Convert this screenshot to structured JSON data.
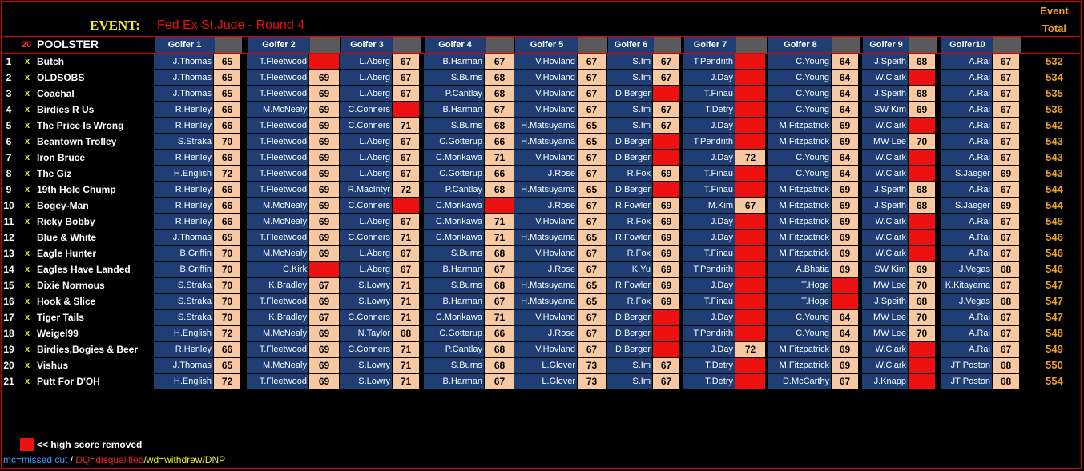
{
  "event": {
    "label": "EVENT:",
    "name": "Fed Ex St.Jude - Round 4",
    "total_header": [
      "Event",
      "Total"
    ]
  },
  "header": {
    "count": "20",
    "poolster": "POOLSTER"
  },
  "golfers": [
    "Golfer 1",
    "Golfer 2",
    "Golfer 3",
    "Golfer 4",
    "Golfer 5",
    "Golfer 6",
    "Golfer 7",
    "Golfer 8",
    "Golfer 9",
    "Golfer10"
  ],
  "rows": [
    {
      "num": "1",
      "x": "x",
      "name": "Butch",
      "picks": [
        [
          "J.Thomas",
          "65"
        ],
        [
          "T.Fleetwood",
          ""
        ],
        [
          "L.Aberg",
          "67"
        ],
        [
          "B.Harman",
          "67"
        ],
        [
          "V.Hovland",
          "67"
        ],
        [
          "S.Im",
          "67"
        ],
        [
          "T.Pendrith",
          ""
        ],
        [
          "C.Young",
          "64"
        ],
        [
          "J.Speith",
          "68"
        ],
        [
          "A.Rai",
          "67"
        ]
      ],
      "total": "532"
    },
    {
      "num": "2",
      "x": "x",
      "name": "OLDSOBS",
      "picks": [
        [
          "J.Thomas",
          "65"
        ],
        [
          "T.Fleetwood",
          "69"
        ],
        [
          "L.Aberg",
          "67"
        ],
        [
          "S.Burns",
          "68"
        ],
        [
          "V.Hovland",
          "67"
        ],
        [
          "S.Im",
          "67"
        ],
        [
          "J.Day",
          ""
        ],
        [
          "C.Young",
          "64"
        ],
        [
          "W.Clark",
          ""
        ],
        [
          "A.Rai",
          "67"
        ]
      ],
      "total": "534"
    },
    {
      "num": "3",
      "x": "x",
      "name": "Coachal",
      "picks": [
        [
          "J.Thomas",
          "65"
        ],
        [
          "T.Fleetwood",
          "69"
        ],
        [
          "L.Aberg",
          "67"
        ],
        [
          "P.Cantlay",
          "68"
        ],
        [
          "V.Hovland",
          "67"
        ],
        [
          "D.Berger",
          ""
        ],
        [
          "T.Finau",
          ""
        ],
        [
          "C.Young",
          "64"
        ],
        [
          "J.Speith",
          "68"
        ],
        [
          "A.Rai",
          "67"
        ]
      ],
      "total": "535"
    },
    {
      "num": "4",
      "x": "x",
      "name": "Birdies R Us",
      "picks": [
        [
          "R.Henley",
          "66"
        ],
        [
          "M.McNealy",
          "69"
        ],
        [
          "C.Conners",
          ""
        ],
        [
          "B.Harman",
          "67"
        ],
        [
          "V.Hovland",
          "67"
        ],
        [
          "S.Im",
          "67"
        ],
        [
          "T.Detry",
          ""
        ],
        [
          "C.Young",
          "64"
        ],
        [
          "SW Kim",
          "69"
        ],
        [
          "A.Rai",
          "67"
        ]
      ],
      "total": "536"
    },
    {
      "num": "5",
      "x": "x",
      "name": "The Price Is Wrong",
      "picks": [
        [
          "R.Henley",
          "66"
        ],
        [
          "T.Fleetwood",
          "69"
        ],
        [
          "C.Conners",
          "71"
        ],
        [
          "S.Burns",
          "68"
        ],
        [
          "H.Matsuyama",
          "65"
        ],
        [
          "S.Im",
          "67"
        ],
        [
          "J.Day",
          ""
        ],
        [
          "M.Fitzpatrick",
          "69"
        ],
        [
          "W.Clark",
          ""
        ],
        [
          "A.Rai",
          "67"
        ]
      ],
      "total": "542"
    },
    {
      "num": "6",
      "x": "x",
      "name": "Beantown Trolley",
      "picks": [
        [
          "S.Straka",
          "70"
        ],
        [
          "T.Fleetwood",
          "69"
        ],
        [
          "L.Aberg",
          "67"
        ],
        [
          "C.Gotterup",
          "66"
        ],
        [
          "H.Matsuyama",
          "65"
        ],
        [
          "D.Berger",
          ""
        ],
        [
          "T.Pendrith",
          ""
        ],
        [
          "M.Fitzpatrick",
          "69"
        ],
        [
          "MW Lee",
          "70"
        ],
        [
          "A.Rai",
          "67"
        ]
      ],
      "total": "543"
    },
    {
      "num": "7",
      "x": "x",
      "name": "Iron Bruce",
      "picks": [
        [
          "R.Henley",
          "66"
        ],
        [
          "T.Fleetwood",
          "69"
        ],
        [
          "L.Aberg",
          "67"
        ],
        [
          "C.Morikawa",
          "71"
        ],
        [
          "V.Hovland",
          "67"
        ],
        [
          "D.Berger",
          ""
        ],
        [
          "J.Day",
          "72"
        ],
        [
          "C.Young",
          "64"
        ],
        [
          "W.Clark",
          ""
        ],
        [
          "A.Rai",
          "67"
        ]
      ],
      "total": "543"
    },
    {
      "num": "8",
      "x": "x",
      "name": "The Giz",
      "picks": [
        [
          "H.English",
          "72"
        ],
        [
          "T.Fleetwood",
          "69"
        ],
        [
          "L.Aberg",
          "67"
        ],
        [
          "C.Gotterup",
          "66"
        ],
        [
          "J.Rose",
          "67"
        ],
        [
          "R.Fox",
          "69"
        ],
        [
          "T.Finau",
          ""
        ],
        [
          "C.Young",
          "64"
        ],
        [
          "W.Clark",
          ""
        ],
        [
          "S.Jaeger",
          "69"
        ]
      ],
      "total": "543"
    },
    {
      "num": "9",
      "x": "x",
      "name": "19th Hole Chump",
      "picks": [
        [
          "R.Henley",
          "66"
        ],
        [
          "T.Fleetwood",
          "69"
        ],
        [
          "R.MacIntyr",
          "72"
        ],
        [
          "P.Cantlay",
          "68"
        ],
        [
          "H.Matsuyama",
          "65"
        ],
        [
          "D.Berger",
          ""
        ],
        [
          "T.Finau",
          ""
        ],
        [
          "M.Fitzpatrick",
          "69"
        ],
        [
          "J.Speith",
          "68"
        ],
        [
          "A.Rai",
          "67"
        ]
      ],
      "total": "544"
    },
    {
      "num": "10",
      "x": "x",
      "name": "Bogey-Man",
      "picks": [
        [
          "R.Henley",
          "66"
        ],
        [
          "M.McNealy",
          "69"
        ],
        [
          "C.Conners",
          ""
        ],
        [
          "C.Morikawa",
          ""
        ],
        [
          "J.Rose",
          "67"
        ],
        [
          "R.Fowler",
          "69"
        ],
        [
          "M.Kim",
          "67"
        ],
        [
          "M.Fitzpatrick",
          "69"
        ],
        [
          "J.Speith",
          "68"
        ],
        [
          "S.Jaeger",
          "69"
        ]
      ],
      "total": "544"
    },
    {
      "num": "11",
      "x": "x",
      "name": "Ricky Bobby",
      "picks": [
        [
          "R.Henley",
          "66"
        ],
        [
          "M.McNealy",
          "69"
        ],
        [
          "L.Aberg",
          "67"
        ],
        [
          "C.Morikawa",
          "71"
        ],
        [
          "V.Hovland",
          "67"
        ],
        [
          "R.Fox",
          "69"
        ],
        [
          "J.Day",
          ""
        ],
        [
          "M.Fitzpatrick",
          "69"
        ],
        [
          "W.Clark",
          ""
        ],
        [
          "A.Rai",
          "67"
        ]
      ],
      "total": "545"
    },
    {
      "num": "12",
      "x": "",
      "name": "Blue & White",
      "picks": [
        [
          "J.Thomas",
          "65"
        ],
        [
          "T.Fleetwood",
          "69"
        ],
        [
          "C.Conners",
          "71"
        ],
        [
          "C.Morikawa",
          "71"
        ],
        [
          "H.Matsuyama",
          "65"
        ],
        [
          "R.Fowler",
          "69"
        ],
        [
          "J.Day",
          ""
        ],
        [
          "M.Fitzpatrick",
          "69"
        ],
        [
          "W.Clark",
          ""
        ],
        [
          "A.Rai",
          "67"
        ]
      ],
      "total": "546"
    },
    {
      "num": "13",
      "x": "x",
      "name": "Eagle Hunter",
      "picks": [
        [
          "B.Griffin",
          "70"
        ],
        [
          "M.McNealy",
          "69"
        ],
        [
          "L.Aberg",
          "67"
        ],
        [
          "S.Burns",
          "68"
        ],
        [
          "V.Hovland",
          "67"
        ],
        [
          "R.Fox",
          "69"
        ],
        [
          "T.Finau",
          ""
        ],
        [
          "M.Fitzpatrick",
          "69"
        ],
        [
          "W.Clark",
          ""
        ],
        [
          "A.Rai",
          "67"
        ]
      ],
      "total": "546"
    },
    {
      "num": "14",
      "x": "x",
      "name": "Eagles Have Landed",
      "picks": [
        [
          "B.Griffin",
          "70"
        ],
        [
          "C.Kirk",
          ""
        ],
        [
          "L.Aberg",
          "67"
        ],
        [
          "B.Harman",
          "67"
        ],
        [
          "J.Rose",
          "67"
        ],
        [
          "K.Yu",
          "69"
        ],
        [
          "T.Pendrith",
          ""
        ],
        [
          "A.Bhatia",
          "69"
        ],
        [
          "SW Kim",
          "69"
        ],
        [
          "J.Vegas",
          "68"
        ]
      ],
      "total": "546"
    },
    {
      "num": "15",
      "x": "x",
      "name": "Dixie Normous",
      "picks": [
        [
          "S.Straka",
          "70"
        ],
        [
          "K.Bradley",
          "67"
        ],
        [
          "S.Lowry",
          "71"
        ],
        [
          "S.Burns",
          "68"
        ],
        [
          "H.Matsuyama",
          "65"
        ],
        [
          "R.Fowler",
          "69"
        ],
        [
          "J.Day",
          ""
        ],
        [
          "T.Hoge",
          ""
        ],
        [
          "MW Lee",
          "70"
        ],
        [
          "K.Kitayama",
          "67"
        ]
      ],
      "total": "547"
    },
    {
      "num": "16",
      "x": "x",
      "name": "Hook & Slice",
      "picks": [
        [
          "S.Straka",
          "70"
        ],
        [
          "T.Fleetwood",
          "69"
        ],
        [
          "S.Lowry",
          "71"
        ],
        [
          "B.Harman",
          "67"
        ],
        [
          "H.Matsuyama",
          "65"
        ],
        [
          "R.Fox",
          "69"
        ],
        [
          "T.Finau",
          ""
        ],
        [
          "T.Hoge",
          ""
        ],
        [
          "J.Speith",
          "68"
        ],
        [
          "J.Vegas",
          "68"
        ]
      ],
      "total": "547"
    },
    {
      "num": "17",
      "x": "x",
      "name": "Tiger Tails",
      "picks": [
        [
          "S.Straka",
          "70"
        ],
        [
          "K.Bradley",
          "67"
        ],
        [
          "C.Conners",
          "71"
        ],
        [
          "C.Morikawa",
          "71"
        ],
        [
          "V.Hovland",
          "67"
        ],
        [
          "D.Berger",
          ""
        ],
        [
          "J.Day",
          ""
        ],
        [
          "C.Young",
          "64"
        ],
        [
          "MW Lee",
          "70"
        ],
        [
          "A.Rai",
          "67"
        ]
      ],
      "total": "547"
    },
    {
      "num": "18",
      "x": "x",
      "name": "Weigel99",
      "picks": [
        [
          "H.English",
          "72"
        ],
        [
          "M.McNealy",
          "69"
        ],
        [
          "N.Taylor",
          "68"
        ],
        [
          "C.Gotterup",
          "66"
        ],
        [
          "J.Rose",
          "67"
        ],
        [
          "D.Berger",
          ""
        ],
        [
          "T.Pendrith",
          ""
        ],
        [
          "C.Young",
          "64"
        ],
        [
          "MW Lee",
          "70"
        ],
        [
          "A.Rai",
          "67"
        ]
      ],
      "total": "548"
    },
    {
      "num": "19",
      "x": "x",
      "name": "Birdies,Bogies & Beer",
      "picks": [
        [
          "R.Henley",
          "66"
        ],
        [
          "T.Fleetwood",
          "69"
        ],
        [
          "C.Conners",
          "71"
        ],
        [
          "P.Cantlay",
          "68"
        ],
        [
          "V.Hovland",
          "67"
        ],
        [
          "D.Berger",
          ""
        ],
        [
          "J.Day",
          "72"
        ],
        [
          "M.Fitzpatrick",
          "69"
        ],
        [
          "W.Clark",
          ""
        ],
        [
          "A.Rai",
          "67"
        ]
      ],
      "total": "549"
    },
    {
      "num": "20",
      "x": "x",
      "name": "Vishus",
      "picks": [
        [
          "J.Thomas",
          "65"
        ],
        [
          "M.McNealy",
          "69"
        ],
        [
          "S.Lowry",
          "71"
        ],
        [
          "S.Burns",
          "68"
        ],
        [
          "L.Glover",
          "73"
        ],
        [
          "S.Im",
          "67"
        ],
        [
          "T.Detry",
          ""
        ],
        [
          "M.Fitzpatrick",
          "69"
        ],
        [
          "W.Clark",
          ""
        ],
        [
          "JT Poston",
          "68"
        ]
      ],
      "total": "550"
    },
    {
      "num": "21",
      "x": "x",
      "name": "Putt For D'OH",
      "picks": [
        [
          "H.English",
          "72"
        ],
        [
          "T.Fleetwood",
          "69"
        ],
        [
          "S.Lowry",
          "71"
        ],
        [
          "B.Harman",
          "67"
        ],
        [
          "L.Glover",
          "73"
        ],
        [
          "S.Im",
          "67"
        ],
        [
          "T.Detry",
          ""
        ],
        [
          "D.McCarthy",
          "67"
        ],
        [
          "J.Knapp",
          ""
        ],
        [
          "JT Poston",
          "68"
        ]
      ],
      "total": "554"
    }
  ],
  "legend": {
    "removed": "<< high score removed",
    "mc": "mc=missed cut",
    "sep": " / ",
    "dq": "DQ=disqualified",
    "wd": "/wd=withdrew/DNP"
  },
  "colors": {
    "name_cell": "#1f3e74",
    "score_cell": "#f8c8a0",
    "removed_cell": "#ee1111",
    "total_text": "#f0a020"
  }
}
